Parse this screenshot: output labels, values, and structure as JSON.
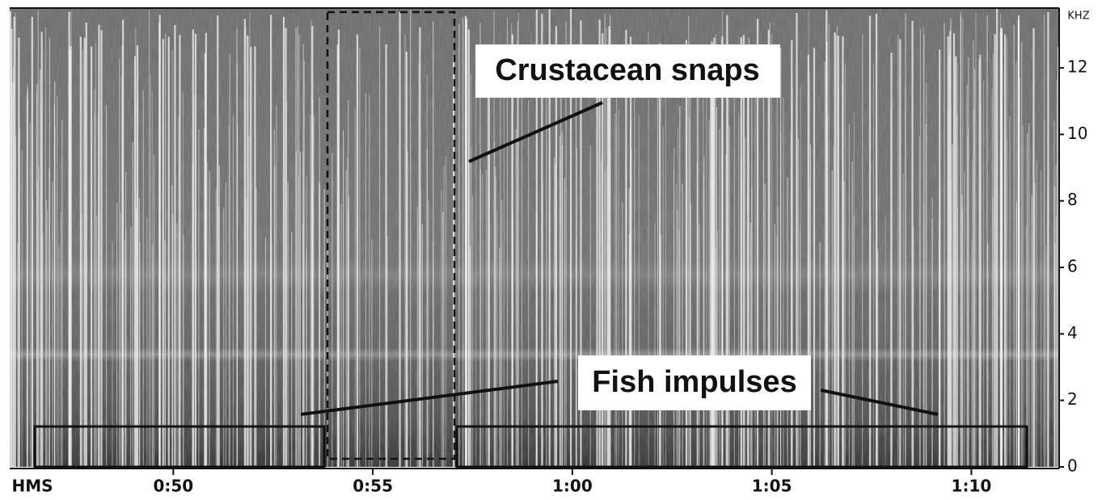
{
  "chart_data": {
    "type": "spectrogram",
    "y_label": "KHZ",
    "x_label": "HMS",
    "xlim": [
      45.9,
      72.2
    ],
    "xticks": [
      {
        "value": 50,
        "label": "0:50"
      },
      {
        "value": 55,
        "label": "0:55"
      },
      {
        "value": 60,
        "label": "1:00"
      },
      {
        "value": 65,
        "label": "1:05"
      },
      {
        "value": 70,
        "label": "1:10"
      }
    ],
    "ylim": [
      0,
      13.8
    ],
    "yticks": [
      0,
      2,
      4,
      6,
      8,
      10,
      12
    ],
    "annotations": [
      "Crustacean snaps",
      "Fish impulses"
    ]
  }
}
